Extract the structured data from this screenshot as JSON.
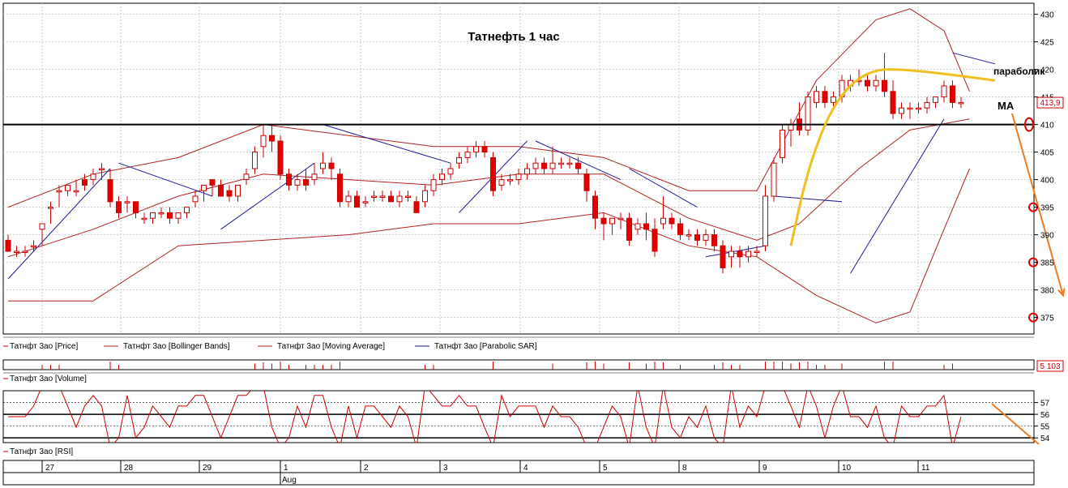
{
  "chart_data": [
    {
      "panel": "price",
      "type": "candlestick",
      "title": "Татнефть   1 час",
      "ylim": [
        372,
        432
      ],
      "y_ticks": [
        375,
        380,
        385,
        390,
        395,
        400,
        405,
        410,
        415,
        420,
        425,
        430
      ],
      "last_price_label": "413,9",
      "horizontal_level": 410,
      "grid": true,
      "legend": [
        {
          "label": "Татнфт 3ао [Price]",
          "color": "#cc0000"
        },
        {
          "label": "Татнфт 3ао [Bollinger Bands]",
          "color": "#b22222"
        },
        {
          "label": "Татнфт 3ао [Moving Average]",
          "color": "#b22222"
        },
        {
          "label": "Татнфт 3ао [Parabolic SAR]",
          "color": "#1a1a99"
        }
      ],
      "annotations": [
        "параболик",
        "МА"
      ],
      "candles_ohlc": [
        [
          389,
          390,
          387,
          387
        ],
        [
          387,
          388,
          386,
          387
        ],
        [
          387,
          388,
          386,
          387
        ],
        [
          388,
          389,
          387,
          388
        ],
        [
          391,
          392,
          388,
          392
        ],
        [
          395,
          396,
          392,
          395
        ],
        [
          398,
          399,
          395,
          398
        ],
        [
          398,
          399,
          397,
          399
        ],
        [
          398,
          400,
          397,
          398
        ],
        [
          400,
          401,
          398,
          399
        ],
        [
          400,
          402,
          399,
          401
        ],
        [
          402,
          403,
          400,
          402
        ],
        [
          400,
          402,
          395,
          396
        ],
        [
          396,
          397,
          393,
          394
        ],
        [
          396,
          397,
          394,
          396
        ],
        [
          396,
          396,
          393,
          394
        ],
        [
          393,
          394,
          392,
          393
        ],
        [
          393,
          394,
          392,
          394
        ],
        [
          394,
          395,
          393,
          394
        ],
        [
          394,
          395,
          392,
          393
        ],
        [
          393,
          394,
          392,
          394
        ],
        [
          394,
          395,
          393,
          395
        ],
        [
          396,
          398,
          395,
          397
        ],
        [
          398,
          399,
          396,
          399
        ],
        [
          400,
          400,
          397,
          399
        ],
        [
          399,
          400,
          397,
          397
        ],
        [
          398,
          399,
          396,
          397
        ],
        [
          397,
          399,
          396,
          399
        ],
        [
          400,
          402,
          399,
          401
        ],
        [
          402,
          406,
          401,
          405
        ],
        [
          406,
          410,
          404,
          408
        ],
        [
          408,
          410,
          405,
          407
        ],
        [
          407,
          408,
          400,
          401
        ],
        [
          401,
          402,
          398,
          399
        ],
        [
          399,
          401,
          398,
          400
        ],
        [
          400,
          402,
          398,
          399
        ],
        [
          400,
          403,
          399,
          401
        ],
        [
          402,
          405,
          401,
          403
        ],
        [
          403,
          404,
          400,
          402
        ],
        [
          401,
          402,
          395,
          396
        ],
        [
          396,
          398,
          395,
          397
        ],
        [
          397,
          398,
          395,
          395
        ],
        [
          396,
          397,
          395,
          396
        ],
        [
          397,
          398,
          396,
          397
        ],
        [
          397,
          398,
          396,
          397
        ],
        [
          397,
          398,
          396,
          396
        ],
        [
          396,
          398,
          395,
          397
        ],
        [
          397,
          398,
          396,
          397
        ],
        [
          396,
          397,
          394,
          394
        ],
        [
          396,
          399,
          395,
          398
        ],
        [
          398,
          401,
          397,
          400
        ],
        [
          400,
          402,
          399,
          401
        ],
        [
          401,
          403,
          400,
          402
        ],
        [
          403,
          405,
          402,
          404
        ],
        [
          404,
          406,
          403,
          405
        ],
        [
          405,
          407,
          404,
          406
        ],
        [
          406,
          407,
          404,
          405
        ],
        [
          404,
          405,
          397,
          398
        ],
        [
          399,
          401,
          398,
          400
        ],
        [
          400,
          401,
          399,
          400
        ],
        [
          400,
          402,
          399,
          401
        ],
        [
          401,
          403,
          400,
          402
        ],
        [
          402,
          404,
          401,
          403
        ],
        [
          403,
          404,
          401,
          402
        ],
        [
          402,
          406,
          401,
          403
        ],
        [
          403,
          404,
          402,
          403
        ],
        [
          403,
          404,
          402,
          403
        ],
        [
          403,
          404,
          401,
          402
        ],
        [
          401,
          402,
          396,
          398
        ],
        [
          397,
          398,
          391,
          393
        ],
        [
          393,
          394,
          389,
          392
        ],
        [
          392,
          393,
          390,
          393
        ],
        [
          393,
          394,
          391,
          393
        ],
        [
          393,
          394,
          388,
          389
        ],
        [
          391,
          393,
          390,
          392
        ],
        [
          392,
          394,
          389,
          391
        ],
        [
          391,
          393,
          386,
          387
        ],
        [
          392,
          397,
          391,
          393
        ],
        [
          393,
          394,
          391,
          392
        ],
        [
          392,
          393,
          389,
          390
        ],
        [
          390,
          391,
          389,
          390
        ],
        [
          390,
          391,
          388,
          389
        ],
        [
          389,
          391,
          388,
          390
        ],
        [
          390,
          391,
          387,
          388
        ],
        [
          388,
          389,
          383,
          384
        ],
        [
          386,
          388,
          384,
          387
        ],
        [
          387,
          388,
          384,
          386
        ],
        [
          386,
          388,
          385,
          387
        ],
        [
          387,
          388,
          386,
          387
        ],
        [
          388,
          399,
          387,
          397
        ],
        [
          397,
          404,
          396,
          403
        ],
        [
          404,
          410,
          403,
          409
        ],
        [
          409,
          411,
          406,
          410
        ],
        [
          411,
          414,
          408,
          409
        ],
        [
          409,
          416,
          408,
          415
        ],
        [
          414,
          417,
          413,
          416
        ],
        [
          416,
          417,
          413,
          414
        ],
        [
          414,
          416,
          413,
          415
        ],
        [
          415,
          419,
          414,
          418
        ],
        [
          417,
          419,
          416,
          418
        ],
        [
          418,
          420,
          417,
          418
        ],
        [
          418,
          419,
          416,
          417
        ],
        [
          417,
          419,
          416,
          418
        ],
        [
          418,
          423,
          415,
          416
        ],
        [
          416,
          418,
          411,
          412
        ],
        [
          412,
          414,
          411,
          413
        ],
        [
          413,
          414,
          411,
          413
        ],
        [
          413,
          414,
          412,
          413
        ],
        [
          413,
          415,
          412,
          414
        ],
        [
          414,
          415,
          413,
          415
        ],
        [
          415,
          418,
          414,
          417
        ],
        [
          417,
          418,
          413,
          414
        ],
        [
          414,
          415,
          413,
          414
        ]
      ],
      "bollinger_upper": [
        [
          0,
          395
        ],
        [
          10,
          401
        ],
        [
          20,
          404
        ],
        [
          30,
          410
        ],
        [
          40,
          408
        ],
        [
          50,
          406
        ],
        [
          60,
          406
        ],
        [
          70,
          404
        ],
        [
          80,
          398
        ],
        [
          88,
          398
        ],
        [
          95,
          418
        ],
        [
          102,
          429
        ],
        [
          106,
          431
        ],
        [
          110,
          427
        ],
        [
          113,
          416
        ]
      ],
      "bollinger_lower": [
        [
          0,
          378
        ],
        [
          10,
          378
        ],
        [
          20,
          388
        ],
        [
          30,
          389
        ],
        [
          40,
          390
        ],
        [
          50,
          392
        ],
        [
          60,
          392
        ],
        [
          70,
          394
        ],
        [
          80,
          388
        ],
        [
          88,
          386
        ],
        [
          95,
          379
        ],
        [
          102,
          374
        ],
        [
          106,
          376
        ],
        [
          110,
          391
        ],
        [
          113,
          402
        ]
      ],
      "moving_average": [
        [
          0,
          386
        ],
        [
          10,
          391
        ],
        [
          20,
          397
        ],
        [
          30,
          401
        ],
        [
          40,
          400
        ],
        [
          50,
          399
        ],
        [
          60,
          401
        ],
        [
          70,
          401
        ],
        [
          80,
          393
        ],
        [
          88,
          389
        ],
        [
          93,
          392
        ],
        [
          100,
          402
        ],
        [
          106,
          409
        ],
        [
          113,
          411
        ]
      ],
      "parabolic_sar": [
        [
          [
            0,
            382
          ],
          [
            12,
            402
          ]
        ],
        [
          [
            13,
            403
          ],
          [
            24,
            397
          ]
        ],
        [
          [
            25,
            391
          ],
          [
            36,
            403
          ]
        ],
        [
          [
            37,
            410
          ],
          [
            52,
            403
          ]
        ],
        [
          [
            53,
            394
          ],
          [
            61,
            407
          ]
        ],
        [
          [
            62,
            407
          ],
          [
            72,
            400
          ]
        ],
        [
          [
            73,
            402
          ],
          [
            81,
            395
          ]
        ],
        [
          [
            82,
            386
          ],
          [
            89,
            388
          ]
        ],
        [
          [
            90,
            397
          ],
          [
            98,
            396
          ]
        ],
        [
          [
            99,
            383
          ],
          [
            110,
            411
          ]
        ],
        [
          [
            111,
            423
          ],
          [
            116,
            421
          ]
        ]
      ],
      "annotation_curve_yellow": [
        [
          92,
          388
        ],
        [
          94,
          402
        ],
        [
          97,
          414
        ],
        [
          101,
          420
        ],
        [
          106,
          420
        ],
        [
          116,
          418
        ]
      ],
      "annotation_arrow_orange": [
        [
          118,
          412
        ],
        [
          128,
          379
        ]
      ],
      "highlighted_levels": [
        410,
        395,
        385,
        375
      ]
    },
    {
      "panel": "volume",
      "type": "bar",
      "legend": "Татнфт 3ао [Volume]",
      "last_value_label": "5 103"
    },
    {
      "panel": "rsi",
      "type": "line",
      "legend": "Татнфт 3ао [RSI]",
      "y_ticks": [
        54,
        55,
        56,
        57
      ],
      "ylim": [
        53.6,
        58
      ]
    }
  ],
  "time_axis": {
    "days": [
      "27",
      "28",
      "29",
      "1",
      "2",
      "3",
      "4",
      "5",
      "8",
      "9",
      "10",
      "11"
    ],
    "month_label": "Aug"
  }
}
